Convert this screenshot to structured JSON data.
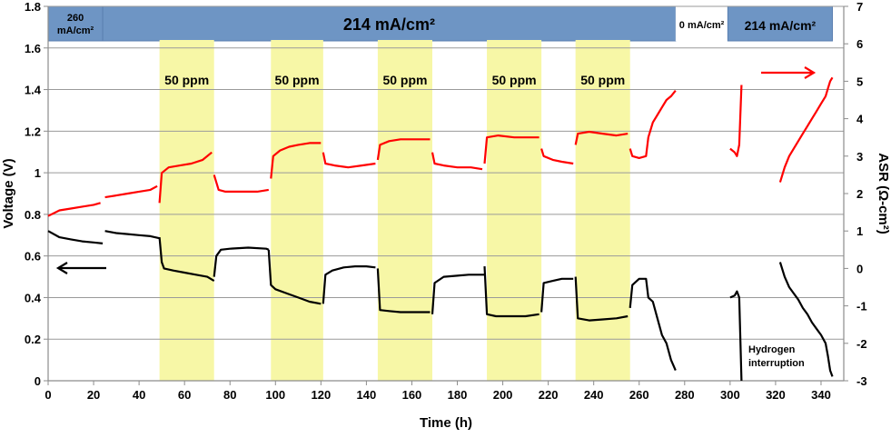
{
  "chart_data": {
    "type": "line",
    "title": "",
    "xlabel": "Time (h)",
    "ylabel_left": "Voltage (V)",
    "ylabel_right": "ASR (Ω-cm²)",
    "xlim": [
      0,
      350
    ],
    "ylim_left": [
      0,
      1.8
    ],
    "ylim_right": [
      -3,
      7
    ],
    "x_ticks": [
      "0",
      "20",
      "40",
      "60",
      "80",
      "100",
      "120",
      "140",
      "160",
      "180",
      "200",
      "220",
      "240",
      "260",
      "280",
      "300",
      "320",
      "340"
    ],
    "y_ticks_left": [
      "0",
      "0.2",
      "0.4",
      "0.6",
      "0.8",
      "1",
      "1.2",
      "1.4",
      "1.6",
      "1.8"
    ],
    "y_ticks_right": [
      "-3",
      "-2",
      "-1",
      "0",
      "1",
      "2",
      "3",
      "4",
      "5",
      "6",
      "7"
    ],
    "gridlines": "horizontal",
    "current_density_bands": [
      {
        "label": "260",
        "label2": "mA/cm²",
        "start": 0,
        "end": 24
      },
      {
        "label": "214 mA/cm²",
        "label2": "",
        "start": 24,
        "end": 276
      },
      {
        "label": "0 mA/cm²",
        "label2": "",
        "start": 276,
        "end": 299
      },
      {
        "label": "214 mA/cm²",
        "label2": "",
        "start": 299,
        "end": 345
      }
    ],
    "impurity_periods": [
      {
        "label": "50 ppm",
        "start": 49,
        "end": 73
      },
      {
        "label": "50 ppm",
        "start": 98,
        "end": 121
      },
      {
        "label": "50 ppm",
        "start": 145,
        "end": 169
      },
      {
        "label": "50 ppm",
        "start": 193,
        "end": 217
      },
      {
        "label": "50 ppm",
        "start": 232,
        "end": 256
      }
    ],
    "annotations": [
      "Hydrogen",
      "interruption"
    ],
    "series": [
      {
        "name": "Voltage",
        "axis": "left",
        "color": "#000000",
        "segments": [
          [
            [
              0,
              0.72
            ],
            [
              5,
              0.69
            ],
            [
              10,
              0.68
            ],
            [
              15,
              0.67
            ],
            [
              20,
              0.665
            ],
            [
              24,
              0.66
            ]
          ],
          [
            [
              25,
              0.72
            ],
            [
              30,
              0.71
            ],
            [
              35,
              0.705
            ],
            [
              40,
              0.7
            ],
            [
              45,
              0.695
            ],
            [
              49,
              0.685
            ]
          ],
          [
            [
              49,
              0.69
            ],
            [
              50,
              0.57
            ],
            [
              51,
              0.54
            ],
            [
              55,
              0.53
            ],
            [
              60,
              0.52
            ],
            [
              65,
              0.51
            ],
            [
              70,
              0.5
            ],
            [
              73,
              0.48
            ]
          ],
          [
            [
              73,
              0.5
            ],
            [
              74,
              0.6
            ],
            [
              76,
              0.63
            ],
            [
              80,
              0.635
            ],
            [
              88,
              0.64
            ],
            [
              96,
              0.635
            ],
            [
              97,
              0.63
            ]
          ],
          [
            [
              97,
              0.63
            ],
            [
              98,
              0.46
            ],
            [
              100,
              0.44
            ],
            [
              105,
              0.42
            ],
            [
              110,
              0.4
            ],
            [
              115,
              0.38
            ],
            [
              120,
              0.37
            ]
          ],
          [
            [
              121,
              0.37
            ],
            [
              122,
              0.51
            ],
            [
              125,
              0.53
            ],
            [
              130,
              0.545
            ],
            [
              135,
              0.55
            ],
            [
              140,
              0.55
            ],
            [
              144,
              0.545
            ]
          ],
          [
            [
              145,
              0.54
            ],
            [
              146,
              0.34
            ],
            [
              150,
              0.335
            ],
            [
              155,
              0.33
            ],
            [
              160,
              0.33
            ],
            [
              165,
              0.33
            ],
            [
              168,
              0.33
            ]
          ],
          [
            [
              169,
              0.32
            ],
            [
              170,
              0.47
            ],
            [
              174,
              0.5
            ],
            [
              180,
              0.505
            ],
            [
              185,
              0.51
            ],
            [
              190,
              0.51
            ],
            [
              192,
              0.51
            ]
          ],
          [
            [
              192,
              0.55
            ],
            [
              193,
              0.32
            ],
            [
              197,
              0.31
            ],
            [
              205,
              0.31
            ],
            [
              210,
              0.31
            ],
            [
              216,
              0.32
            ]
          ],
          [
            [
              217,
              0.33
            ],
            [
              218,
              0.47
            ],
            [
              222,
              0.48
            ],
            [
              226,
              0.49
            ],
            [
              231,
              0.49
            ]
          ],
          [
            [
              232,
              0.5
            ],
            [
              233,
              0.3
            ],
            [
              238,
              0.29
            ],
            [
              244,
              0.295
            ],
            [
              250,
              0.3
            ],
            [
              255,
              0.31
            ]
          ],
          [
            [
              256,
              0.35
            ],
            [
              257,
              0.46
            ],
            [
              260,
              0.49
            ],
            [
              263,
              0.49
            ],
            [
              264,
              0.4
            ],
            [
              266,
              0.38
            ],
            [
              268,
              0.3
            ],
            [
              270,
              0.22
            ],
            [
              272,
              0.18
            ],
            [
              274,
              0.1
            ],
            [
              276,
              0.05
            ]
          ],
          [
            [
              300,
              0.4
            ],
            [
              302,
              0.41
            ],
            [
              303,
              0.43
            ],
            [
              304,
              0.4
            ],
            [
              305,
              0.0
            ]
          ],
          [
            [
              322,
              0.57
            ],
            [
              324,
              0.5
            ],
            [
              326,
              0.45
            ],
            [
              328,
              0.42
            ],
            [
              330,
              0.39
            ],
            [
              332,
              0.35
            ],
            [
              334,
              0.32
            ],
            [
              336,
              0.28
            ],
            [
              338,
              0.25
            ],
            [
              340,
              0.22
            ],
            [
              342,
              0.18
            ],
            [
              343,
              0.12
            ],
            [
              344,
              0.05
            ],
            [
              345,
              0.02
            ]
          ]
        ]
      },
      {
        "name": "ASR",
        "axis": "right",
        "color": "#ff0000",
        "segments": [
          [
            [
              0,
              1.4
            ],
            [
              5,
              1.55
            ],
            [
              10,
              1.6
            ],
            [
              15,
              1.65
            ],
            [
              20,
              1.7
            ],
            [
              23,
              1.75
            ]
          ],
          [
            [
              25,
              1.9
            ],
            [
              30,
              1.95
            ],
            [
              35,
              2.0
            ],
            [
              40,
              2.05
            ],
            [
              45,
              2.1
            ],
            [
              48,
              2.2
            ]
          ],
          [
            [
              49,
              1.75
            ],
            [
              50,
              2.55
            ],
            [
              53,
              2.7
            ],
            [
              58,
              2.75
            ],
            [
              63,
              2.8
            ],
            [
              68,
              2.9
            ],
            [
              72,
              3.1
            ]
          ],
          [
            [
              73,
              2.5
            ],
            [
              75,
              2.1
            ],
            [
              78,
              2.05
            ],
            [
              85,
              2.05
            ],
            [
              92,
              2.05
            ],
            [
              97,
              2.1
            ]
          ],
          [
            [
              98,
              2.4
            ],
            [
              99,
              3.0
            ],
            [
              102,
              3.15
            ],
            [
              106,
              3.25
            ],
            [
              110,
              3.3
            ],
            [
              115,
              3.35
            ],
            [
              120,
              3.35
            ]
          ],
          [
            [
              121,
              3.1
            ],
            [
              122,
              2.8
            ],
            [
              126,
              2.75
            ],
            [
              132,
              2.7
            ],
            [
              138,
              2.75
            ],
            [
              144,
              2.8
            ]
          ],
          [
            [
              145,
              2.9
            ],
            [
              146,
              3.3
            ],
            [
              150,
              3.4
            ],
            [
              155,
              3.45
            ],
            [
              160,
              3.45
            ],
            [
              165,
              3.45
            ],
            [
              168,
              3.45
            ]
          ],
          [
            [
              169,
              3.1
            ],
            [
              170,
              2.8
            ],
            [
              174,
              2.75
            ],
            [
              180,
              2.7
            ],
            [
              186,
              2.7
            ],
            [
              191,
              2.65
            ]
          ],
          [
            [
              192,
              2.8
            ],
            [
              193,
              3.5
            ],
            [
              198,
              3.55
            ],
            [
              205,
              3.5
            ],
            [
              210,
              3.5
            ],
            [
              216,
              3.5
            ]
          ],
          [
            [
              217,
              3.2
            ],
            [
              218,
              3.0
            ],
            [
              222,
              2.9
            ],
            [
              226,
              2.85
            ],
            [
              231,
              2.8
            ]
          ],
          [
            [
              232,
              3.3
            ],
            [
              233,
              3.6
            ],
            [
              238,
              3.65
            ],
            [
              244,
              3.6
            ],
            [
              250,
              3.55
            ],
            [
              255,
              3.6
            ]
          ],
          [
            [
              256,
              3.2
            ],
            [
              257,
              3.0
            ],
            [
              260,
              2.95
            ],
            [
              263,
              3.0
            ],
            [
              264,
              3.5
            ],
            [
              266,
              3.9
            ],
            [
              268,
              4.1
            ],
            [
              270,
              4.3
            ],
            [
              272,
              4.5
            ],
            [
              274,
              4.6
            ],
            [
              276,
              4.75
            ]
          ],
          [
            [
              300,
              3.2
            ],
            [
              302,
              3.1
            ],
            [
              303,
              3.0
            ],
            [
              304,
              3.3
            ],
            [
              305,
              4.9
            ]
          ],
          [
            [
              322,
              2.3
            ],
            [
              324,
              2.7
            ],
            [
              326,
              3.0
            ],
            [
              328,
              3.2
            ],
            [
              330,
              3.4
            ],
            [
              332,
              3.6
            ],
            [
              334,
              3.8
            ],
            [
              336,
              4.0
            ],
            [
              338,
              4.2
            ],
            [
              340,
              4.4
            ],
            [
              342,
              4.6
            ],
            [
              343,
              4.8
            ],
            [
              344,
              5.0
            ],
            [
              345,
              5.1
            ]
          ]
        ]
      }
    ]
  }
}
